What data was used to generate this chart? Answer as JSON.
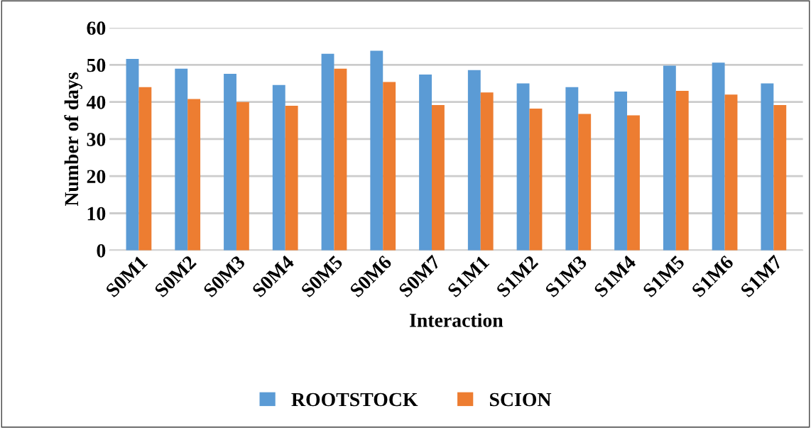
{
  "chart_data": {
    "type": "bar",
    "xlabel": "Interaction",
    "ylabel": "Number of days",
    "categories": [
      "S0M1",
      "S0M2",
      "S0M3",
      "S0M4",
      "S0M5",
      "S0M6",
      "S0M7",
      "S1M1",
      "S1M2",
      "S1M3",
      "S1M4",
      "S1M5",
      "S1M6",
      "S1M7"
    ],
    "series": [
      {
        "name": "ROOTSTOCK",
        "color": "#5b9bd5",
        "values": [
          51.6,
          49,
          47.6,
          44.6,
          53,
          53.8,
          47.4,
          48.6,
          45,
          44,
          42.8,
          49.8,
          50.6,
          45
        ]
      },
      {
        "name": "SCION",
        "color": "#ed7d31",
        "values": [
          44,
          40.8,
          40,
          39,
          49,
          45.4,
          39.2,
          42.6,
          38.2,
          36.8,
          36.4,
          43,
          42,
          39.2
        ]
      }
    ],
    "ylim": [
      0,
      60
    ],
    "yticks": [
      0,
      10,
      20,
      30,
      40,
      50,
      60
    ],
    "grid": "y",
    "legend": "bottom"
  }
}
